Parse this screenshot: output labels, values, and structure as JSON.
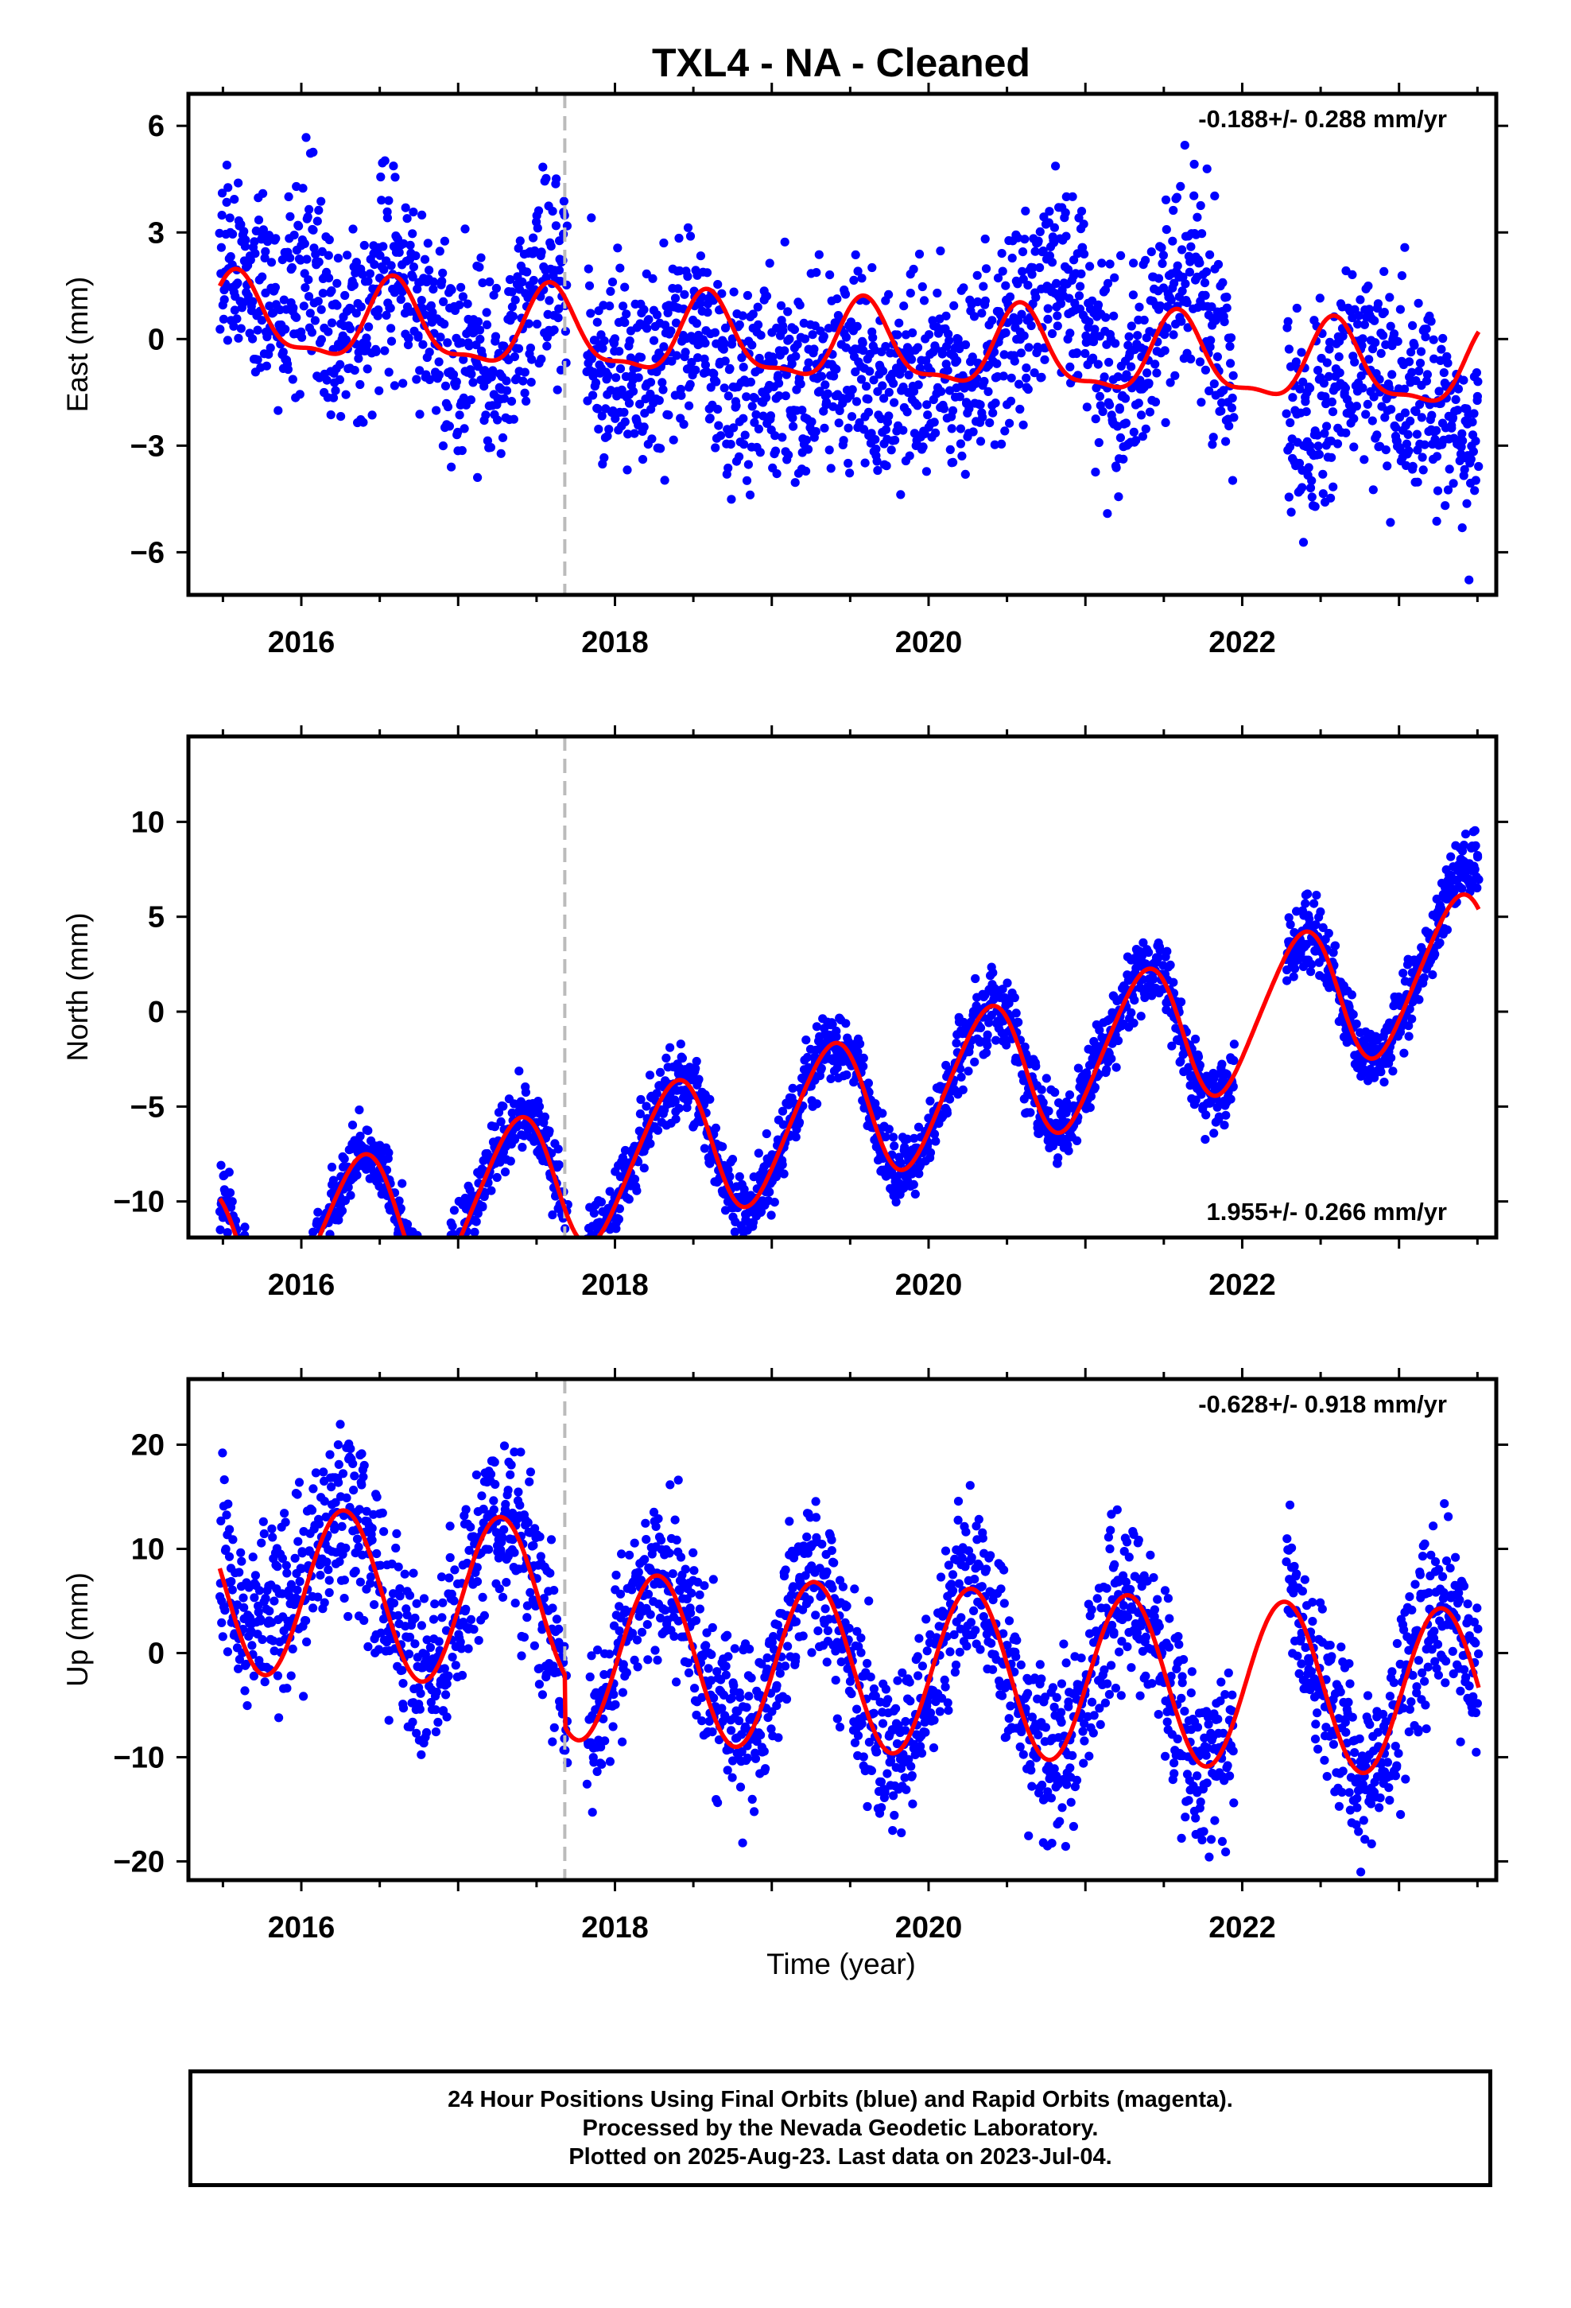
{
  "title": "TXL4  - NA - Cleaned",
  "xlabel": "Time (year)",
  "colors": {
    "final_orbits": "#0000ff",
    "model_fit": "#ff0000",
    "event_line": "#bbbbbb",
    "frame": "#000000"
  },
  "footer": {
    "line1": "24 Hour Positions Using Final Orbits (blue) and Rapid Orbits (magenta).",
    "line2": "Processed by the Nevada Geodetic Laboratory.",
    "line3": "Plotted on 2025-Aug-23. Last data on 2023-Jul-04."
  },
  "chart_data": [
    {
      "type": "scatter",
      "ylabel": "East (mm)",
      "xlim": [
        2015.28,
        2023.62
      ],
      "ylim": [
        -7.2,
        6.9
      ],
      "xticks": [
        2016,
        2018,
        2020,
        2022
      ],
      "yticks": [
        6,
        3,
        0,
        -3,
        -6
      ],
      "ytick_labels": [
        "6",
        "3",
        "0",
        "−3",
        "−6"
      ],
      "rate_label": "-0.188+/- 0.288 mm/yr",
      "rate_position": "top-right",
      "event_line_x": 2017.68,
      "data_range": [
        2015.48,
        2023.51
      ],
      "model": {
        "trend": -0.188,
        "offset": -0.2,
        "annual_sin": -0.6,
        "annual_cos": -0.9,
        "semi_sin": 0.3,
        "semi_cos": 0.2
      },
      "scatter_noise": 1.4,
      "anomalies": [
        {
          "x": 2016.0,
          "y": 2.3
        },
        {
          "x": 2018.7,
          "y": -2.0
        },
        {
          "x": 2019.6,
          "y": -2.6
        },
        {
          "x": 2020.9,
          "y": 2.6
        },
        {
          "x": 2021.7,
          "y": 1.8
        },
        {
          "x": 2022.5,
          "y": -2.8
        },
        {
          "x": 2023.5,
          "y": -2.8
        }
      ],
      "gaps": [
        [
          2017.7,
          2017.82
        ],
        [
          2021.95,
          2022.28
        ]
      ],
      "points_per_year": 300
    },
    {
      "type": "scatter",
      "ylabel": "North (mm)",
      "xlim": [
        2015.28,
        2023.62
      ],
      "ylim": [
        -11.9,
        14.5
      ],
      "xticks": [
        2016,
        2018,
        2020,
        2022
      ],
      "yticks": [
        10,
        5,
        0,
        -5,
        -10
      ],
      "ytick_labels": [
        "10",
        "5",
        "0",
        "−5",
        "−10"
      ],
      "rate_label": "1.955+/- 0.266 mm/yr",
      "rate_position": "bottom-right",
      "event_line_x": 2017.68,
      "data_range": [
        2015.48,
        2023.51
      ],
      "model": {
        "trend": 1.955,
        "offset": -5.2,
        "annual_sin": 2.7,
        "annual_cos": -2.5,
        "semi_sin": 0.0,
        "semi_cos": 0.4
      },
      "scatter_noise": 0.9,
      "anomalies": [
        {
          "x": 2015.9,
          "y": -1.0
        },
        {
          "x": 2023.5,
          "y": 2.0
        }
      ],
      "gaps": [
        [
          2017.7,
          2017.82
        ],
        [
          2021.95,
          2022.28
        ]
      ],
      "points_per_year": 300
    },
    {
      "type": "scatter",
      "ylabel": "Up (mm)",
      "xlim": [
        2015.28,
        2023.62
      ],
      "ylim": [
        -21.8,
        26.3
      ],
      "xticks": [
        2016,
        2018,
        2020,
        2022
      ],
      "yticks": [
        20,
        10,
        0,
        -10,
        -20
      ],
      "ytick_labels": [
        "20",
        "10",
        "0",
        "−10",
        "−20"
      ],
      "rate_label": "-0.628+/- 0.918 mm/yr",
      "rate_position": "top-right",
      "event_line_x": 2017.68,
      "data_range": [
        2015.48,
        2023.51
      ],
      "model": {
        "trend": -0.628,
        "offset": 3.6,
        "annual_sin": 8.0,
        "annual_cos": -1.0,
        "semi_sin": 0.0,
        "semi_cos": 0.0
      },
      "step_at_event": -5.0,
      "scatter_noise": 4.0,
      "anomalies": [
        {
          "x": 2015.8,
          "y": 6.0
        },
        {
          "x": 2018.6,
          "y": 3.0
        }
      ],
      "gaps": [
        [
          2017.7,
          2017.82
        ],
        [
          2021.95,
          2022.28
        ]
      ],
      "points_per_year": 300
    }
  ]
}
